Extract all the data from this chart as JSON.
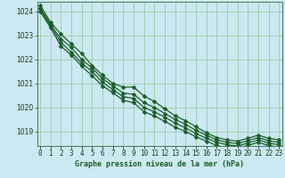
{
  "title": "Graphe pression niveau de la mer (hPa)",
  "xlabel_hours": [
    0,
    1,
    2,
    3,
    4,
    5,
    6,
    7,
    8,
    9,
    10,
    11,
    12,
    13,
    14,
    15,
    16,
    17,
    18,
    19,
    20,
    21,
    22,
    23
  ],
  "ylim": [
    1018.4,
    1024.4
  ],
  "yticks": [
    1019,
    1020,
    1021,
    1022,
    1023,
    1024
  ],
  "xlim": [
    -0.3,
    23.3
  ],
  "bg_color": "#cce8f0",
  "line_color": "#1a5c28",
  "grid_color": "#8ec8a0",
  "line1": [
    1024.25,
    1023.55,
    1023.05,
    1022.65,
    1022.25,
    1021.75,
    1021.35,
    1021.0,
    1020.85,
    1020.85,
    1020.48,
    1020.25,
    1019.95,
    1019.65,
    1019.45,
    1019.2,
    1018.95,
    1018.75,
    1018.65,
    1018.6,
    1018.72,
    1018.85,
    1018.72,
    1018.65
  ],
  "line2": [
    1024.15,
    1023.45,
    1022.85,
    1022.5,
    1022.0,
    1021.65,
    1021.2,
    1020.9,
    1020.6,
    1020.55,
    1020.2,
    1020.0,
    1019.75,
    1019.5,
    1019.3,
    1019.05,
    1018.85,
    1018.65,
    1018.55,
    1018.5,
    1018.62,
    1018.75,
    1018.62,
    1018.55
  ],
  "line3": [
    1024.1,
    1023.4,
    1022.7,
    1022.3,
    1021.85,
    1021.5,
    1021.05,
    1020.75,
    1020.45,
    1020.38,
    1020.0,
    1019.82,
    1019.6,
    1019.35,
    1019.15,
    1018.92,
    1018.72,
    1018.55,
    1018.45,
    1018.4,
    1018.52,
    1018.65,
    1018.52,
    1018.45
  ],
  "line4": [
    1024.0,
    1023.32,
    1022.55,
    1022.18,
    1021.72,
    1021.32,
    1020.9,
    1020.62,
    1020.3,
    1020.2,
    1019.82,
    1019.65,
    1019.42,
    1019.18,
    1019.0,
    1018.78,
    1018.6,
    1018.42,
    1018.32,
    1018.28,
    1018.42,
    1018.55,
    1018.42,
    1018.35
  ],
  "marker": "D",
  "marker_size": 2.5,
  "linewidth": 0.9,
  "tick_fontsize": 5.5,
  "label_fontsize": 6.0
}
